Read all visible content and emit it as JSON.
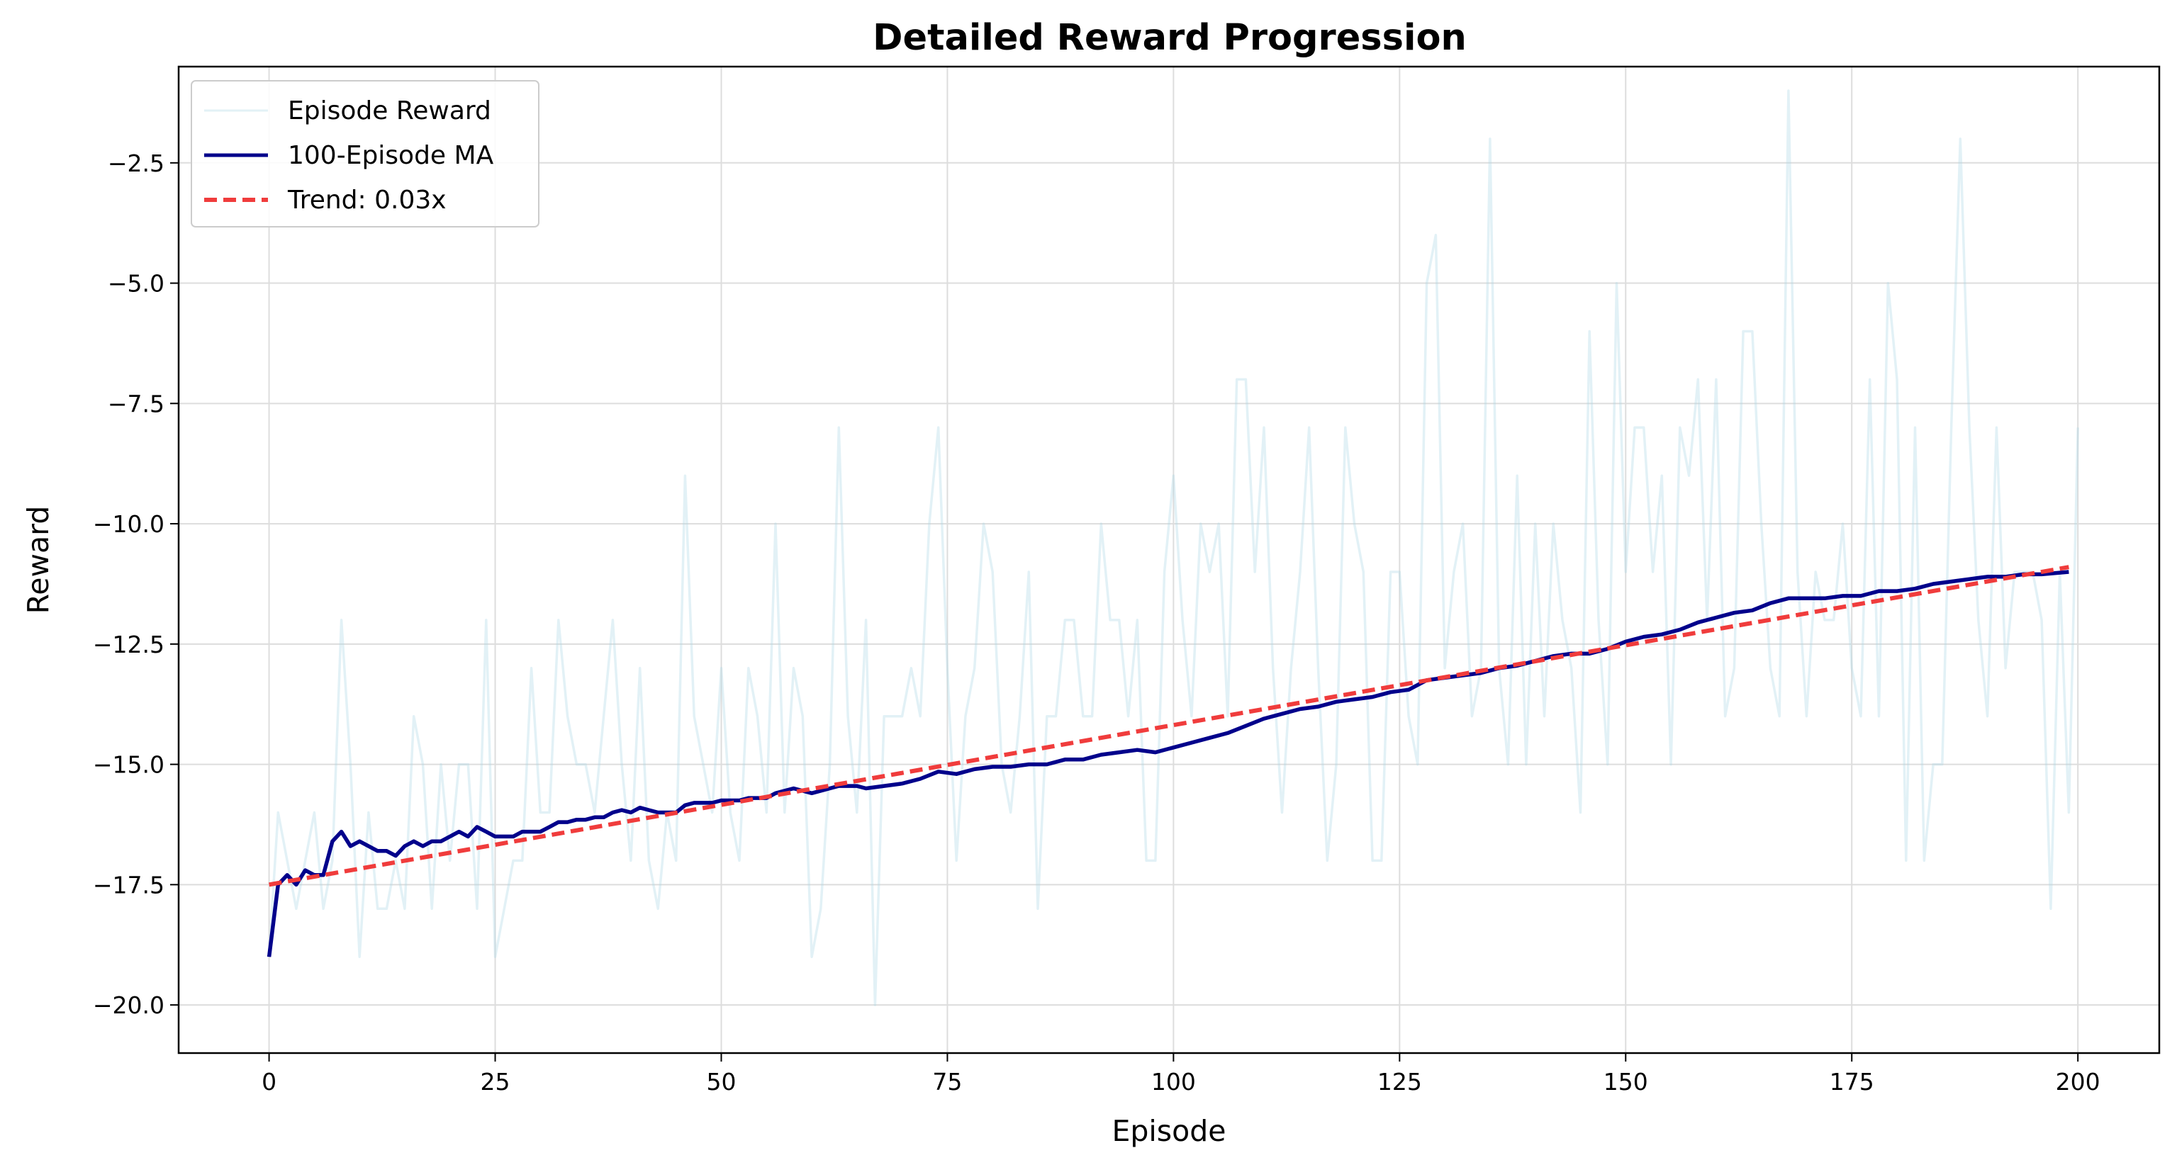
{
  "chart_data": {
    "type": "line",
    "title": "Detailed Reward Progression",
    "xlabel": "Episode",
    "ylabel": "Reward",
    "xlim": [
      -10,
      209
    ],
    "ylim": [
      -21,
      -0.5
    ],
    "xticks": [
      0,
      25,
      50,
      75,
      100,
      125,
      150,
      175,
      200
    ],
    "yticks": [
      -20.0,
      -17.5,
      -15.0,
      -12.5,
      -10.0,
      -7.5,
      -5.0,
      -2.5
    ],
    "xtick_labels": [
      "0",
      "25",
      "50",
      "75",
      "100",
      "125",
      "150",
      "175",
      "200"
    ],
    "ytick_labels": [
      "−20.0",
      "−17.5",
      "−15.0",
      "−12.5",
      "−10.0",
      "−7.5",
      "−5.0",
      "−2.5"
    ],
    "grid": true,
    "legend_position": "top-left",
    "series": [
      {
        "name": "Episode Reward",
        "style": "line",
        "color": "#add8e6",
        "x_start": 0,
        "values": [
          -19,
          -16,
          -17,
          -18,
          -17,
          -16,
          -18,
          -17,
          -12,
          -15,
          -19,
          -16,
          -18,
          -18,
          -17,
          -18,
          -14,
          -15,
          -18,
          -15,
          -17,
          -15,
          -15,
          -18,
          -12,
          -19,
          -18,
          -17,
          -17,
          -13,
          -16,
          -16,
          -12,
          -14,
          -15,
          -15,
          -16,
          -14,
          -12,
          -15,
          -17,
          -13,
          -17,
          -18,
          -16,
          -17,
          -9,
          -14,
          -15,
          -16,
          -13,
          -16,
          -17,
          -13,
          -14,
          -16,
          -10,
          -16,
          -13,
          -14,
          -19,
          -18,
          -15,
          -8,
          -14,
          -16,
          -12,
          -20,
          -14,
          -14,
          -14,
          -13,
          -14,
          -10,
          -8,
          -13,
          -17,
          -14,
          -13,
          -10,
          -11,
          -15,
          -16,
          -14,
          -11,
          -18,
          -14,
          -14,
          -12,
          -12,
          -14,
          -14,
          -10,
          -12,
          -12,
          -14,
          -12,
          -17,
          -17,
          -11,
          -9,
          -12,
          -14,
          -10,
          -11,
          -10,
          -14,
          -7,
          -7,
          -11,
          -8,
          -13,
          -16,
          -13,
          -11,
          -8,
          -13,
          -17,
          -15,
          -8,
          -10,
          -11,
          -17,
          -17,
          -11,
          -11,
          -14,
          -15,
          -5,
          -4,
          -13,
          -11,
          -10,
          -14,
          -13,
          -2,
          -13,
          -15,
          -9,
          -15,
          -10,
          -14,
          -10,
          -12,
          -13,
          -16,
          -6,
          -12,
          -15,
          -5,
          -11,
          -8,
          -8,
          -11,
          -9,
          -15,
          -8,
          -9,
          -7,
          -12,
          -7,
          -14,
          -13,
          -6,
          -6,
          -10,
          -13,
          -14,
          -1,
          -11,
          -14,
          -11,
          -12,
          -12,
          -10,
          -13,
          -14,
          -7,
          -14,
          -5,
          -7,
          -17,
          -8,
          -17,
          -15,
          -15,
          -8,
          -2,
          -8,
          -12,
          -14,
          -8,
          -13,
          -11,
          -11,
          -11,
          -12,
          -18,
          -11,
          -16,
          -8
        ]
      },
      {
        "name": "100-Episode MA",
        "style": "line",
        "color": "#00008b",
        "x": [
          0,
          1,
          2,
          3,
          4,
          5,
          6,
          7,
          8,
          9,
          10,
          12,
          13,
          14,
          15,
          16,
          17,
          18,
          19,
          20,
          21,
          22,
          23,
          24,
          25,
          26,
          27,
          28,
          29,
          30,
          31,
          32,
          33,
          34,
          35,
          36,
          37,
          38,
          39,
          40,
          41,
          42,
          43,
          44,
          45,
          46,
          47,
          48,
          49,
          50,
          51,
          52,
          53,
          55,
          56,
          58,
          60,
          62,
          63,
          64,
          65,
          66,
          68,
          70,
          72,
          74,
          76,
          78,
          80,
          82,
          84,
          86,
          88,
          90,
          92,
          94,
          96,
          98,
          100,
          102,
          104,
          106,
          108,
          110,
          112,
          114,
          116,
          118,
          120,
          122,
          124,
          126,
          128,
          130,
          132,
          134,
          136,
          138,
          140,
          142,
          144,
          146,
          148,
          150,
          152,
          154,
          156,
          158,
          160,
          162,
          164,
          166,
          168,
          170,
          172,
          174,
          176,
          178,
          180,
          182,
          184,
          186,
          188,
          190,
          192,
          194,
          196,
          199
        ],
        "values": [
          -19,
          -17.5,
          -17.3,
          -17.5,
          -17.2,
          -17.3,
          -17.3,
          -16.6,
          -16.4,
          -16.7,
          -16.6,
          -16.8,
          -16.8,
          -16.9,
          -16.7,
          -16.6,
          -16.7,
          -16.6,
          -16.6,
          -16.5,
          -16.4,
          -16.5,
          -16.3,
          -16.4,
          -16.5,
          -16.5,
          -16.5,
          -16.4,
          -16.4,
          -16.4,
          -16.3,
          -16.2,
          -16.2,
          -16.15,
          -16.15,
          -16.1,
          -16.1,
          -16,
          -15.95,
          -16,
          -15.9,
          -15.95,
          -16,
          -16,
          -16,
          -15.85,
          -15.8,
          -15.8,
          -15.8,
          -15.75,
          -15.75,
          -15.75,
          -15.7,
          -15.7,
          -15.6,
          -15.5,
          -15.6,
          -15.5,
          -15.45,
          -15.45,
          -15.45,
          -15.5,
          -15.45,
          -15.4,
          -15.3,
          -15.15,
          -15.2,
          -15.1,
          -15.05,
          -15.05,
          -15,
          -15,
          -14.9,
          -14.9,
          -14.8,
          -14.75,
          -14.7,
          -14.75,
          -14.65,
          -14.55,
          -14.45,
          -14.35,
          -14.2,
          -14.05,
          -13.95,
          -13.85,
          -13.8,
          -13.7,
          -13.65,
          -13.6,
          -13.5,
          -13.45,
          -13.25,
          -13.2,
          -13.15,
          -13.1,
          -13,
          -12.95,
          -12.85,
          -12.75,
          -12.7,
          -12.7,
          -12.6,
          -12.45,
          -12.35,
          -12.3,
          -12.2,
          -12.05,
          -11.95,
          -11.85,
          -11.8,
          -11.65,
          -11.55,
          -11.55,
          -11.55,
          -11.5,
          -11.5,
          -11.4,
          -11.4,
          -11.35,
          -11.25,
          -11.2,
          -11.15,
          -11.1,
          -11.1,
          -11.05,
          -11.05,
          -11.0
        ]
      },
      {
        "name": "Trend: 0.03x",
        "style": "dashed",
        "color": "#f03c3c",
        "x": [
          0,
          199
        ],
        "values": [
          -17.5,
          -10.9
        ]
      }
    ]
  }
}
